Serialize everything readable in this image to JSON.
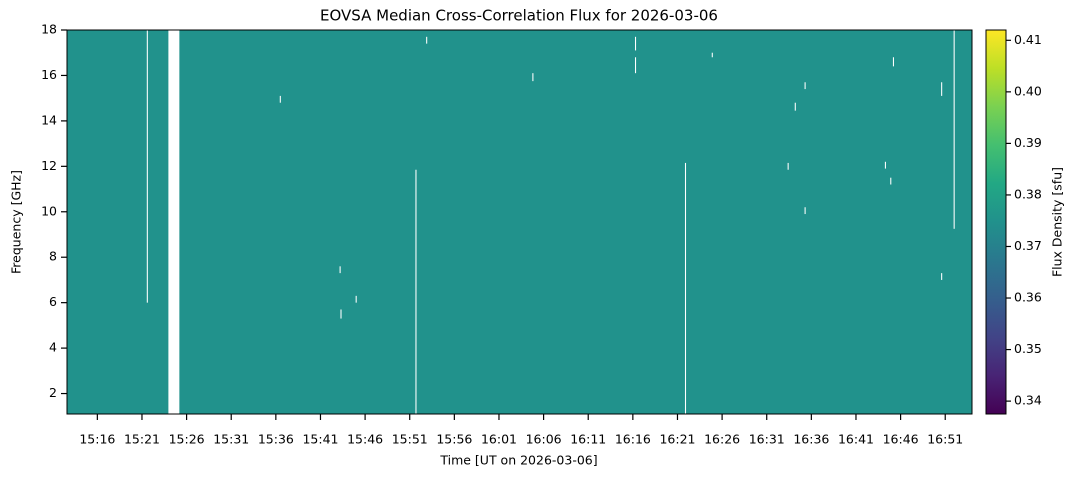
{
  "chart_data": {
    "type": "heatmap",
    "title": "EOVSA Median Cross-Correlation Flux for 2026-03-06",
    "xlabel": "Time [UT on 2026-03-06]",
    "ylabel": "Frequency [GHz]",
    "colorbar_label": "Flux Density [sfu]",
    "colormap": "viridis",
    "value": 0.375,
    "gap_color": "#ffffff",
    "xlim": [
      912.6,
      1014.0
    ],
    "ylim": [
      1.1,
      18
    ],
    "clim": [
      0.3375,
      0.412
    ],
    "xticks": [
      {
        "value": 916,
        "label": "15:16"
      },
      {
        "value": 921,
        "label": "15:21"
      },
      {
        "value": 926,
        "label": "15:26"
      },
      {
        "value": 931,
        "label": "15:31"
      },
      {
        "value": 936,
        "label": "15:36"
      },
      {
        "value": 941,
        "label": "15:41"
      },
      {
        "value": 946,
        "label": "15:46"
      },
      {
        "value": 951,
        "label": "15:51"
      },
      {
        "value": 956,
        "label": "15:56"
      },
      {
        "value": 961,
        "label": "16:01"
      },
      {
        "value": 966,
        "label": "16:06"
      },
      {
        "value": 971,
        "label": "16:11"
      },
      {
        "value": 976,
        "label": "16:16"
      },
      {
        "value": 981,
        "label": "16:21"
      },
      {
        "value": 986,
        "label": "16:26"
      },
      {
        "value": 991,
        "label": "16:31"
      },
      {
        "value": 996,
        "label": "16:36"
      },
      {
        "value": 1001,
        "label": "16:41"
      },
      {
        "value": 1006,
        "label": "16:46"
      },
      {
        "value": 1011,
        "label": "16:51"
      }
    ],
    "yticks": [
      2,
      4,
      6,
      8,
      10,
      12,
      14,
      16,
      18
    ],
    "cticks": [
      0.34,
      0.35,
      0.36,
      0.37,
      0.38,
      0.39,
      0.4,
      0.41
    ],
    "cticks_labels": [
      "0.34",
      "0.35",
      "0.36",
      "0.37",
      "0.38",
      "0.39",
      "0.40",
      "0.41"
    ],
    "gaps": [
      {
        "x": [
          923.96,
          925.19
        ],
        "y": [
          1.1,
          18
        ]
      },
      {
        "x": [
          921.54,
          921.66
        ],
        "y": [
          6.0,
          18
        ]
      },
      {
        "x": [
          936.44,
          936.56
        ],
        "y": [
          14.8,
          15.1
        ]
      },
      {
        "x": [
          943.14,
          943.26
        ],
        "y": [
          7.3,
          7.6
        ]
      },
      {
        "x": [
          943.24,
          943.36
        ],
        "y": [
          5.3,
          5.7
        ]
      },
      {
        "x": [
          944.94,
          945.06
        ],
        "y": [
          6.0,
          6.3
        ]
      },
      {
        "x": [
          951.64,
          951.76
        ],
        "y": [
          1.1,
          11.85
        ]
      },
      {
        "x": [
          952.84,
          952.96
        ],
        "y": [
          17.4,
          17.7
        ]
      },
      {
        "x": [
          964.74,
          964.86
        ],
        "y": [
          15.75,
          16.1
        ]
      },
      {
        "x": [
          976.24,
          976.36
        ],
        "y": [
          17.1,
          17.7
        ]
      },
      {
        "x": [
          976.24,
          976.36
        ],
        "y": [
          16.1,
          16.8
        ]
      },
      {
        "x": [
          981.84,
          981.96
        ],
        "y": [
          1.1,
          12.15
        ]
      },
      {
        "x": [
          984.84,
          984.96
        ],
        "y": [
          16.8,
          17.0
        ]
      },
      {
        "x": [
          993.34,
          993.46
        ],
        "y": [
          11.85,
          12.15
        ]
      },
      {
        "x": [
          994.14,
          994.26
        ],
        "y": [
          14.45,
          14.8
        ]
      },
      {
        "x": [
          995.24,
          995.36
        ],
        "y": [
          15.4,
          15.7
        ]
      },
      {
        "x": [
          995.24,
          995.36
        ],
        "y": [
          9.9,
          10.2
        ]
      },
      {
        "x": [
          1004.24,
          1004.36
        ],
        "y": [
          11.9,
          12.2
        ]
      },
      {
        "x": [
          1004.84,
          1004.96
        ],
        "y": [
          11.2,
          11.5
        ]
      },
      {
        "x": [
          1005.14,
          1005.26
        ],
        "y": [
          16.4,
          16.8
        ]
      },
      {
        "x": [
          1010.54,
          1010.66
        ],
        "y": [
          15.1,
          15.7
        ]
      },
      {
        "x": [
          1010.54,
          1010.66
        ],
        "y": [
          7.0,
          7.3
        ]
      },
      {
        "x": [
          1011.94,
          1012.06
        ],
        "y": [
          9.25,
          18
        ]
      }
    ]
  }
}
